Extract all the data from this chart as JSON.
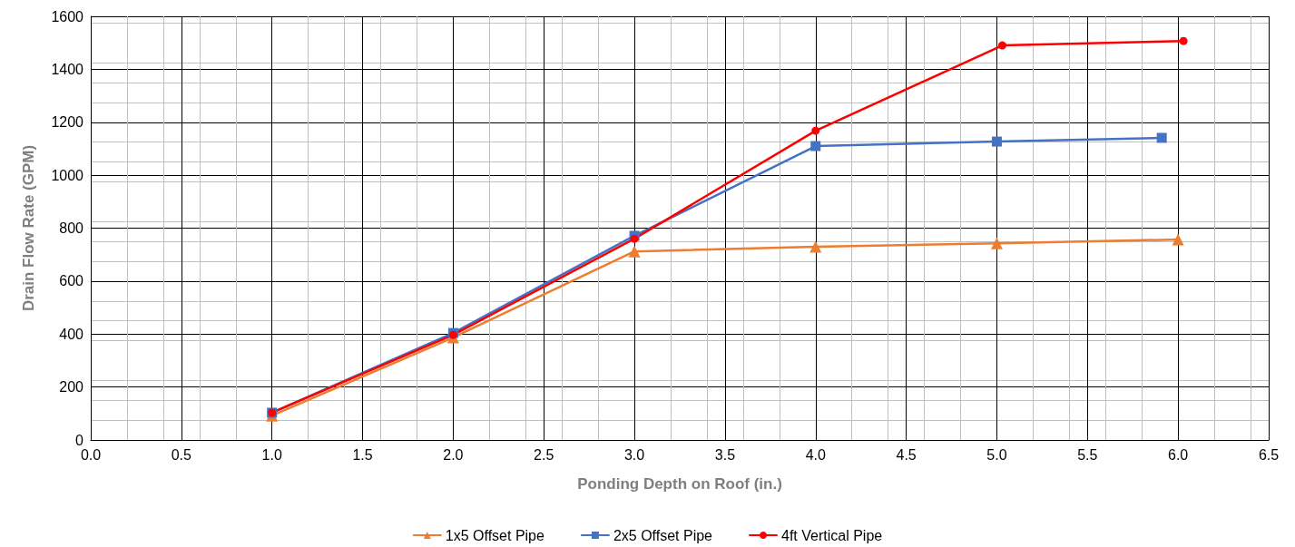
{
  "chart_data": {
    "type": "line",
    "xlabel": "Ponding Depth on Roof (in.)",
    "ylabel": "Drain Flow Rate (GPM)",
    "xlim": [
      0,
      6.5
    ],
    "xticks": [
      {
        "value": 0,
        "label": "0.0"
      },
      {
        "value": 0.5,
        "label": "0.5"
      },
      {
        "value": 1,
        "label": "1.0"
      },
      {
        "value": 1.5,
        "label": "1.5"
      },
      {
        "value": 2,
        "label": "2.0"
      },
      {
        "value": 2.5,
        "label": "2.5"
      },
      {
        "value": 3,
        "label": "3.0"
      },
      {
        "value": 3.5,
        "label": "3.5"
      },
      {
        "value": 4,
        "label": "4.0"
      },
      {
        "value": 4.5,
        "label": "4.5"
      },
      {
        "value": 5,
        "label": "5.0"
      },
      {
        "value": 5.5,
        "label": "5.5"
      },
      {
        "value": 6,
        "label": "6.0"
      },
      {
        "value": 6.5,
        "label": "6.5"
      }
    ],
    "ylim": [
      0,
      1600
    ],
    "yticks": [
      0,
      200,
      400,
      600,
      800,
      1000,
      1200,
      1400,
      1600
    ],
    "grid": true,
    "legend": "bottom",
    "series": [
      {
        "name": "1x5 Offset Pipe",
        "color": "#ed7d31",
        "marker": "triangle",
        "x": [
          1,
          2,
          3,
          4,
          5,
          6
        ],
        "values": [
          92,
          387,
          712,
          730,
          743,
          757
        ]
      },
      {
        "name": "2x5 Offset Pipe",
        "color": "#4472c4",
        "marker": "square",
        "x": [
          1,
          2,
          3,
          4,
          5,
          5.91
        ],
        "values": [
          103,
          404,
          771,
          1110,
          1127,
          1141
        ]
      },
      {
        "name": "4ft Vertical Pipe",
        "color": "#ff0000",
        "marker": "circle",
        "x": [
          1,
          2,
          3,
          4,
          5.03,
          6.03
        ],
        "values": [
          103,
          397,
          760,
          1168,
          1490,
          1507
        ]
      }
    ]
  }
}
